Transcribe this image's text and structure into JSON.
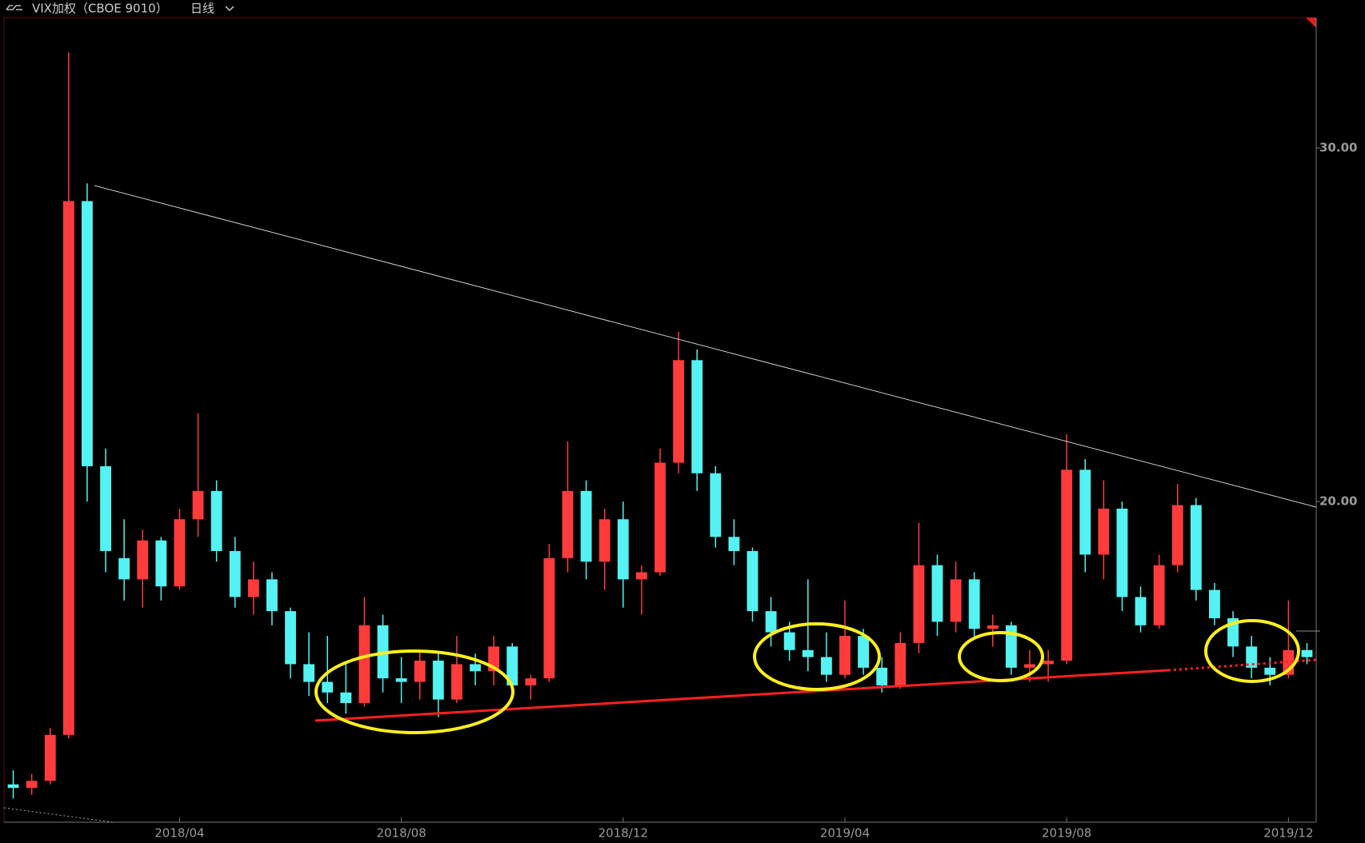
{
  "header": {
    "title": "VIX加权（CBOE 9010）",
    "period": "日线"
  },
  "chart_data": {
    "type": "candlestick",
    "categories": [
      null,
      null,
      null,
      null,
      null,
      null,
      null,
      null,
      null,
      "2018/04",
      null,
      null,
      null,
      null,
      null,
      null,
      null,
      null,
      null,
      null,
      null,
      "2018/08",
      null,
      null,
      null,
      null,
      null,
      null,
      null,
      null,
      null,
      null,
      null,
      "2018/12",
      null,
      null,
      null,
      null,
      null,
      null,
      null,
      null,
      null,
      null,
      null,
      "2019/04",
      null,
      null,
      null,
      null,
      null,
      null,
      null,
      null,
      null,
      null,
      null,
      "2019/08",
      null,
      null,
      null,
      null,
      null,
      null,
      null,
      null,
      null,
      null,
      null,
      "2019/12",
      null
    ],
    "ohlc": [
      [
        12.0,
        12.4,
        11.6,
        11.9
      ],
      [
        11.9,
        12.3,
        11.7,
        12.1
      ],
      [
        12.1,
        13.6,
        12.0,
        13.4
      ],
      [
        13.4,
        32.7,
        13.3,
        28.5
      ],
      [
        28.5,
        29.0,
        20.0,
        21.0
      ],
      [
        21.0,
        21.5,
        18.0,
        18.6
      ],
      [
        18.4,
        19.5,
        17.2,
        17.8
      ],
      [
        17.8,
        19.2,
        17.0,
        18.9
      ],
      [
        18.9,
        19.0,
        17.2,
        17.6
      ],
      [
        17.6,
        19.8,
        17.5,
        19.5
      ],
      [
        19.5,
        22.5,
        19.0,
        20.3
      ],
      [
        20.3,
        20.6,
        18.3,
        18.6
      ],
      [
        18.6,
        19.0,
        17.0,
        17.3
      ],
      [
        17.3,
        18.3,
        16.8,
        17.8
      ],
      [
        17.8,
        18.0,
        16.5,
        16.9
      ],
      [
        16.9,
        17.0,
        15.0,
        15.4
      ],
      [
        15.4,
        16.3,
        14.5,
        14.9
      ],
      [
        14.9,
        16.2,
        14.3,
        14.6
      ],
      [
        14.6,
        15.4,
        14.0,
        14.3
      ],
      [
        14.3,
        17.3,
        14.2,
        16.5
      ],
      [
        16.5,
        16.8,
        14.6,
        15.0
      ],
      [
        15.0,
        15.6,
        14.3,
        14.9
      ],
      [
        14.9,
        15.8,
        14.4,
        15.5
      ],
      [
        15.5,
        15.7,
        13.9,
        14.4
      ],
      [
        14.4,
        16.2,
        14.3,
        15.4
      ],
      [
        15.4,
        15.7,
        14.8,
        15.2
      ],
      [
        15.2,
        16.2,
        14.8,
        15.9
      ],
      [
        15.9,
        16.0,
        14.6,
        14.8
      ],
      [
        14.8,
        15.1,
        14.4,
        15.0
      ],
      [
        15.0,
        18.8,
        14.9,
        18.4
      ],
      [
        18.4,
        21.7,
        18.0,
        20.3
      ],
      [
        20.3,
        20.6,
        17.8,
        18.3
      ],
      [
        18.3,
        19.8,
        17.5,
        19.5
      ],
      [
        19.5,
        20.0,
        17.0,
        17.8
      ],
      [
        17.8,
        18.2,
        16.8,
        18.0
      ],
      [
        18.0,
        21.5,
        17.9,
        21.1
      ],
      [
        21.1,
        24.8,
        20.8,
        24.0
      ],
      [
        24.0,
        24.3,
        20.3,
        20.8
      ],
      [
        20.8,
        21.0,
        18.7,
        19.0
      ],
      [
        19.0,
        19.5,
        18.2,
        18.6
      ],
      [
        18.6,
        18.7,
        16.6,
        16.9
      ],
      [
        16.9,
        17.3,
        15.9,
        16.3
      ],
      [
        16.3,
        16.6,
        15.5,
        15.8
      ],
      [
        15.8,
        17.8,
        15.2,
        15.6
      ],
      [
        15.6,
        16.3,
        14.9,
        15.1
      ],
      [
        15.1,
        17.2,
        15.0,
        16.2
      ],
      [
        16.2,
        16.4,
        15.1,
        15.3
      ],
      [
        15.3,
        15.6,
        14.6,
        14.8
      ],
      [
        14.8,
        16.3,
        14.7,
        16.0
      ],
      [
        16.0,
        19.4,
        15.7,
        18.2
      ],
      [
        18.2,
        18.5,
        16.2,
        16.6
      ],
      [
        16.6,
        18.3,
        16.3,
        17.8
      ],
      [
        17.8,
        18.0,
        16.1,
        16.4
      ],
      [
        16.4,
        16.8,
        15.9,
        16.5
      ],
      [
        16.5,
        16.6,
        15.1,
        15.3
      ],
      [
        15.3,
        15.8,
        14.9,
        15.4
      ],
      [
        15.4,
        15.8,
        14.9,
        15.5
      ],
      [
        15.5,
        21.9,
        15.4,
        20.9
      ],
      [
        20.9,
        21.2,
        18.0,
        18.5
      ],
      [
        18.5,
        20.6,
        17.8,
        19.8
      ],
      [
        19.8,
        20.0,
        16.9,
        17.3
      ],
      [
        17.3,
        17.6,
        16.3,
        16.5
      ],
      [
        16.5,
        18.5,
        16.4,
        18.2
      ],
      [
        18.2,
        20.5,
        18.0,
        19.9
      ],
      [
        19.9,
        20.1,
        17.2,
        17.5
      ],
      [
        17.5,
        17.7,
        16.5,
        16.7
      ],
      [
        16.7,
        16.9,
        15.6,
        15.9
      ],
      [
        15.9,
        16.2,
        15.0,
        15.3
      ],
      [
        15.3,
        15.6,
        14.8,
        15.1
      ],
      [
        15.1,
        17.2,
        15.0,
        15.8
      ],
      [
        15.8,
        16.0,
        15.4,
        15.6
      ]
    ],
    "up_color": "#ff3b3b",
    "down_color": "#54f2f2",
    "ylim": [
      10.93,
      33.69
    ],
    "yticks": [
      {
        "value": 20,
        "label": "20.00"
      },
      {
        "value": 30,
        "label": "30.00"
      }
    ]
  }
}
